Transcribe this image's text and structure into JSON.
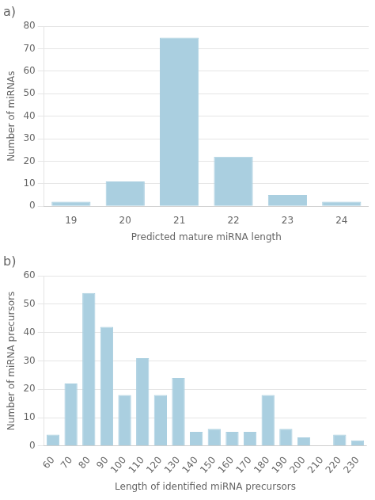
{
  "chart_data": [
    {
      "type": "bar",
      "title": "a)",
      "categories": [
        19,
        20,
        21,
        22,
        23,
        24
      ],
      "values": [
        2,
        11,
        75,
        22,
        5,
        2
      ],
      "color": "#aacfe0",
      "xlabel": "Predicted mature miRNA length",
      "ylabel": "Number of miRNAs",
      "ylim": [
        0,
        80
      ],
      "yticks": [
        0,
        10,
        20,
        30,
        40,
        50,
        60,
        70,
        80
      ],
      "grid": true
    },
    {
      "type": "bar",
      "title": "b)",
      "categories": [
        60,
        70,
        80,
        90,
        100,
        110,
        120,
        130,
        140,
        150,
        160,
        170,
        180,
        190,
        200,
        210,
        220,
        230
      ],
      "values": [
        4,
        22,
        54,
        42,
        18,
        31,
        18,
        24,
        5,
        6,
        5,
        5,
        18,
        6,
        3,
        0,
        4,
        2
      ],
      "color": "#aacfe0",
      "xlabel": "Length of identified miRNA precursors",
      "ylabel": "Number of miRNA precursors",
      "ylim": [
        0,
        60
      ],
      "yticks": [
        0,
        10,
        20,
        30,
        40,
        50,
        60
      ],
      "grid": true
    }
  ]
}
